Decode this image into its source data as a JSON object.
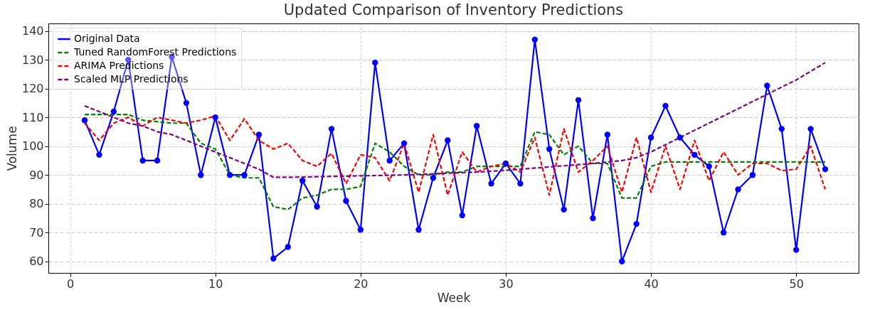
{
  "chart_data": {
    "type": "line",
    "title": "Updated Comparison of Inventory Predictions",
    "xlabel": "Week",
    "ylabel": "Volume",
    "x": [
      1,
      2,
      3,
      4,
      5,
      6,
      7,
      8,
      9,
      10,
      11,
      12,
      13,
      14,
      15,
      16,
      17,
      18,
      19,
      20,
      21,
      22,
      23,
      24,
      25,
      26,
      27,
      28,
      29,
      30,
      31,
      32,
      33,
      34,
      35,
      36,
      37,
      38,
      39,
      40,
      41,
      42,
      43,
      44,
      45,
      46,
      47,
      48,
      49,
      50,
      51,
      52
    ],
    "series": [
      {
        "name": "Original Data",
        "color": "#0000ff",
        "marker": "circle",
        "line_style": "solid",
        "values": [
          109,
          97,
          112,
          130,
          95,
          95,
          131,
          115,
          90,
          110,
          90,
          90,
          104,
          61,
          65,
          88,
          79,
          106,
          81,
          71,
          129,
          95,
          101,
          71,
          89,
          102,
          76,
          107,
          87,
          94,
          87,
          137,
          99,
          78,
          116,
          75,
          104,
          60,
          73,
          103,
          114,
          103,
          97,
          93,
          70,
          85,
          90,
          121,
          106,
          64,
          106,
          92
        ]
      },
      {
        "name": "Tuned RandomForest Predictions",
        "color": "#008000",
        "marker": "none",
        "line_style": "dashed",
        "values": [
          111,
          111,
          111,
          111,
          109,
          108.5,
          108,
          108,
          101,
          99,
          90,
          89,
          89,
          79,
          78,
          82,
          83,
          85,
          85,
          86,
          101,
          98,
          93,
          90,
          90,
          91,
          91,
          93,
          93,
          93,
          93,
          105,
          104,
          97,
          100,
          94,
          94,
          82,
          82,
          93,
          94.5,
          94.5,
          94.5,
          94.5,
          94.5,
          94.5,
          94.5,
          94.5,
          94.5,
          94.5,
          94.5,
          94.5
        ]
      },
      {
        "name": "ARIMA Predictions",
        "color": "#ff0000",
        "marker": "none",
        "line_style": "dashed",
        "values": [
          108,
          102,
          108,
          110,
          107,
          110,
          109,
          108,
          109,
          110.5,
          102,
          109.5,
          102,
          99,
          101,
          95,
          93,
          97.5,
          87,
          97,
          96,
          88,
          101,
          84,
          104,
          83,
          98,
          91,
          93,
          94,
          91,
          103,
          83,
          106,
          91,
          95,
          100,
          84,
          103,
          84,
          100,
          85,
          102,
          88,
          98,
          90,
          94,
          94,
          91.5,
          92,
          100,
          85
        ]
      },
      {
        "name": "Scaled MLP Predictions",
        "color": "#800080",
        "marker": "none",
        "line_style": "dashed",
        "values": [
          114,
          112,
          110,
          108,
          107,
          105,
          104,
          102,
          100,
          98,
          96,
          94,
          92,
          89.2,
          89.2,
          89.3,
          89.4,
          89.5,
          89.6,
          89.7,
          89.8,
          89.9,
          90,
          90.2,
          90.4,
          90.6,
          90.8,
          91,
          91.3,
          91.6,
          92,
          92.4,
          92.8,
          93.2,
          93.6,
          94,
          94.5,
          95,
          96,
          98,
          100.5,
          103,
          105.5,
          108,
          110.5,
          113,
          115.5,
          118,
          120.5,
          123,
          126,
          129
        ]
      }
    ],
    "xlim": [
      -1.5,
      54.3
    ],
    "ylim": [
      56,
      142.6
    ],
    "xticks": [
      0,
      10,
      20,
      30,
      40,
      50
    ],
    "yticks": [
      60,
      70,
      80,
      90,
      100,
      110,
      120,
      130,
      140
    ],
    "grid": true,
    "legend": "top left"
  }
}
